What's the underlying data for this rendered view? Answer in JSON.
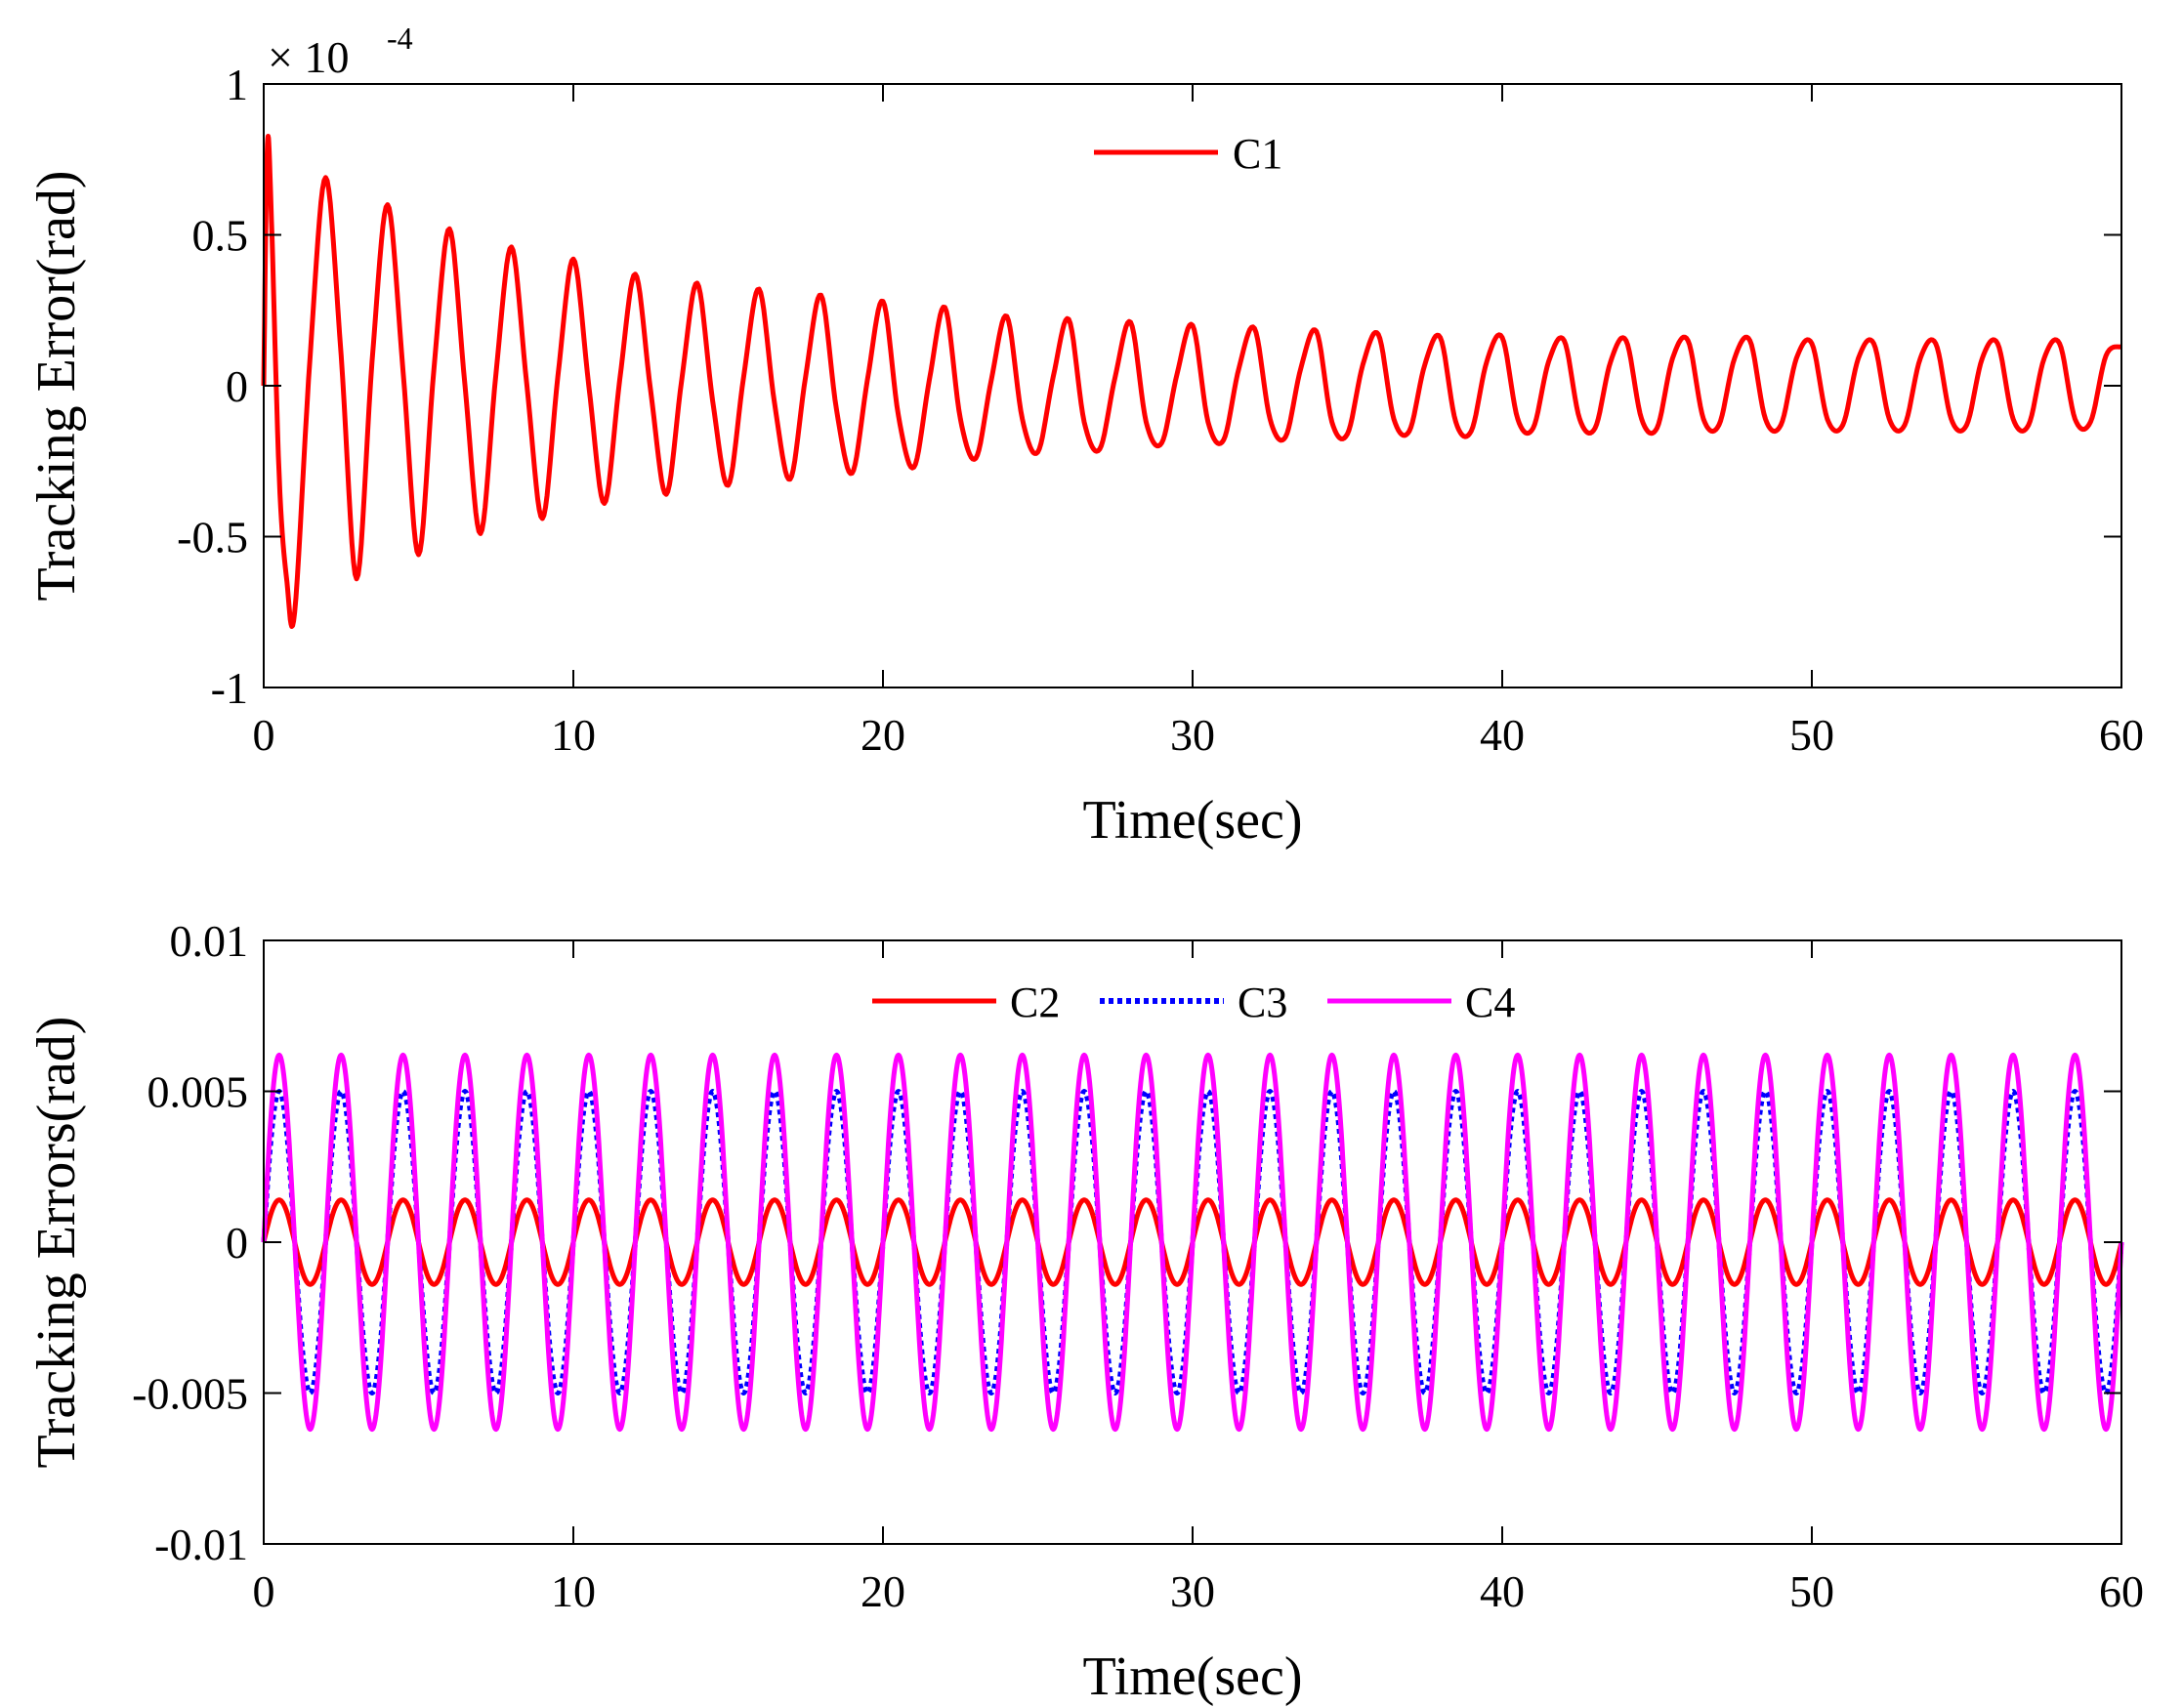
{
  "chart_data": [
    {
      "type": "line",
      "panel": "top",
      "title": "",
      "xlabel": "Time(sec)",
      "ylabel": "Tracking Error(rad)",
      "xlim": [
        0,
        60
      ],
      "ylim": [
        -1,
        1
      ],
      "xticks": [
        0,
        10,
        20,
        30,
        40,
        50,
        60
      ],
      "xtick_labels": [
        "0",
        "10",
        "20",
        "30",
        "40",
        "50",
        "60"
      ],
      "yticks": [
        1,
        0.5,
        0,
        -0.5,
        -1
      ],
      "ytick_labels": [
        "1",
        "0.5",
        "0",
        "-0.5",
        "-1"
      ],
      "y_exponent": {
        "base": "× 10",
        "power": "-4"
      },
      "legend_position": "top-center",
      "grid": false,
      "series": [
        {
          "name": "C1",
          "color": "#ff0000",
          "style": "solid",
          "description": "decaying oscillation, period about 2 s, envelope decaying from about 0.8 to about 0.13 (×10^-4 rad)",
          "x": [
            0,
            0.12,
            0.25,
            0.5,
            0.75,
            1.0,
            1.5,
            2.0,
            2.5,
            3.0,
            3.5,
            4.0,
            4.5,
            5.0,
            5.5,
            6.0,
            6.5,
            7.0,
            7.5,
            8.0,
            8.5,
            9.0,
            9.5,
            10.0,
            10.5,
            11.0,
            11.5,
            12.0,
            12.5,
            13.0,
            13.5,
            14.0,
            14.5,
            15.0,
            15.5,
            16.0,
            16.5,
            17.0,
            17.5,
            18.0,
            18.5,
            19.0,
            19.5,
            20.0,
            20.5,
            21.0,
            21.5,
            22.0,
            22.5,
            23.0,
            23.5,
            24.0,
            24.5,
            25.0,
            25.5,
            26.0,
            26.5,
            27.0,
            27.5,
            28.0,
            28.5,
            29.0,
            29.5,
            30.0,
            30.5,
            31.0,
            31.5,
            32.0,
            32.5,
            33.0,
            33.5,
            34.0,
            34.5,
            35.0,
            35.5,
            36.0,
            36.5,
            37.0,
            37.5,
            38.0,
            38.5,
            39.0,
            39.5,
            40.0,
            40.5,
            41.0,
            41.5,
            42.0,
            42.5,
            43.0,
            43.5,
            44.0,
            44.5,
            45.0,
            45.5,
            46.0,
            46.5,
            47.0,
            47.5,
            48.0,
            48.5,
            49.0,
            49.5,
            50.0,
            50.5,
            51.0,
            51.5,
            52.0,
            52.5,
            53.0,
            53.5,
            54.0,
            54.5,
            55.0,
            55.5,
            56.0,
            56.5,
            57.0,
            57.5,
            58.0,
            58.5,
            59.0,
            59.5,
            60.0
          ],
          "values": [
            0,
            0.8,
            0.55,
            -0.3,
            -0.65,
            -0.75,
            0.1,
            0.69,
            0.1,
            -0.64,
            0.08,
            0.6,
            0.05,
            -0.56,
            0.06,
            0.52,
            0.0,
            -0.49,
            0.04,
            0.46,
            0.0,
            -0.44,
            0.03,
            0.42,
            0.0,
            -0.39,
            0.02,
            0.37,
            -0.02,
            -0.36,
            0.02,
            0.34,
            -0.05,
            -0.33,
            0.03,
            0.32,
            -0.06,
            -0.31,
            0.03,
            0.3,
            -0.08,
            -0.29,
            0.02,
            0.28,
            -0.1,
            -0.27,
            0.02,
            0.26,
            -0.11,
            -0.24,
            0.02,
            0.23,
            -0.11,
            -0.22,
            0.03,
            0.22,
            -0.12,
            -0.21,
            0.03,
            0.21,
            -0.12,
            -0.19,
            0.04,
            0.2,
            -0.12,
            -0.18,
            0.06,
            0.19,
            -0.11,
            -0.17,
            0.06,
            0.18,
            -0.12,
            -0.16,
            0.07,
            0.17,
            -0.11,
            -0.15,
            0.07,
            0.16,
            -0.12,
            -0.15,
            0.08,
            0.16,
            -0.11,
            -0.14,
            0.08,
            0.15,
            -0.11,
            -0.14,
            0.08,
            0.15,
            -0.11,
            -0.14,
            0.09,
            0.15,
            -0.11,
            -0.13,
            0.09,
            0.15,
            -0.11,
            -0.13,
            0.09,
            0.14,
            -0.11,
            -0.13,
            0.09,
            0.14,
            -0.11,
            -0.13,
            0.09,
            0.14,
            -0.11,
            -0.13,
            0.09,
            0.14,
            -0.11,
            -0.13,
            0.09,
            0.14,
            -0.11,
            -0.12,
            0.1,
            0.13
          ]
        }
      ]
    },
    {
      "type": "line",
      "panel": "bottom",
      "title": "",
      "xlabel": "Time(sec)",
      "ylabel": "Tracking Errors(rad)",
      "xlim": [
        0,
        60
      ],
      "ylim": [
        -0.01,
        0.01
      ],
      "xticks": [
        0,
        10,
        20,
        30,
        40,
        50,
        60
      ],
      "xtick_labels": [
        "0",
        "10",
        "20",
        "30",
        "40",
        "50",
        "60"
      ],
      "yticks": [
        0.01,
        0.005,
        0,
        -0.005,
        -0.01
      ],
      "ytick_labels": [
        "0.01",
        "0.005",
        "0",
        "-0.005",
        "-0.01"
      ],
      "legend_position": "top-center",
      "grid": false,
      "series": [
        {
          "name": "C2",
          "color": "#ff0000",
          "style": "solid",
          "waveform": "sine",
          "amplitude": 0.0014,
          "period": 2.0,
          "phase": 0,
          "x_range": [
            0,
            60
          ]
        },
        {
          "name": "C3",
          "color": "#0000ff",
          "style": "dotted",
          "waveform": "sine",
          "amplitude": 0.005,
          "period": 2.0,
          "phase": 0,
          "x_range": [
            0,
            60
          ]
        },
        {
          "name": "C4",
          "color": "#ff00ff",
          "style": "solid",
          "waveform": "sine",
          "amplitude": 0.0062,
          "period": 2.0,
          "phase": 0,
          "x_range": [
            0,
            60
          ]
        }
      ]
    }
  ]
}
